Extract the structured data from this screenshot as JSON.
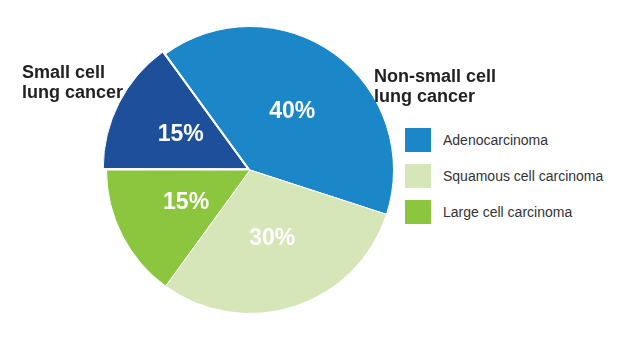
{
  "chart_data": {
    "type": "pie",
    "data_labels": true,
    "legend": "right",
    "groups": [
      {
        "name": "Non-small cell\nlung cancer",
        "categories": [
          "Adenocarcinoma",
          "Squamous cell carcinoma",
          "Large cell carcinoma"
        ],
        "values": [
          40,
          30,
          15
        ],
        "value_labels": [
          "40%",
          "30%",
          "15%"
        ],
        "colors": [
          "#1b86c8",
          "#d6e6b8",
          "#8cc63f"
        ]
      },
      {
        "name": "Small cell\nlung cancer",
        "values": [
          15
        ],
        "value_labels": [
          "15%"
        ],
        "colors": [
          "#1e4f9b"
        ]
      }
    ]
  }
}
